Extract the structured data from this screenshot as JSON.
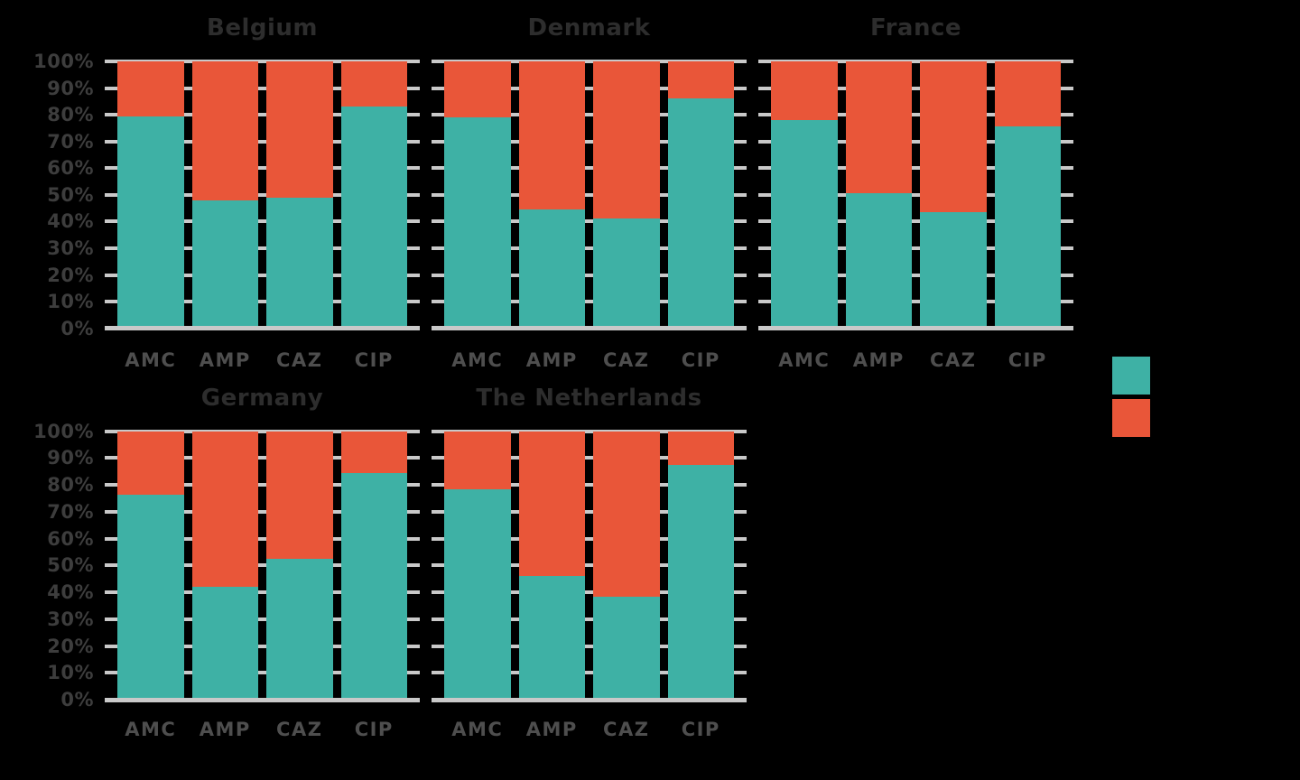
{
  "chart_data": {
    "type": "bar",
    "stacked": true,
    "percent_scale": true,
    "categories": [
      "AMC",
      "AMP",
      "CAZ",
      "CIP"
    ],
    "y_tick_labels": [
      "0%",
      "10%",
      "20%",
      "30%",
      "40%",
      "50%",
      "60%",
      "70%",
      "80%",
      "90%",
      "100%"
    ],
    "ylim": [
      0,
      100
    ],
    "grid": true,
    "subplots": [
      {
        "title": "Belgium",
        "series": [
          {
            "color": "teal",
            "values": [
              79.5,
              48,
              49,
              83
            ]
          },
          {
            "color": "orange",
            "values": [
              20.5,
              52,
              51,
              17
            ]
          }
        ]
      },
      {
        "title": "Denmark",
        "series": [
          {
            "color": "teal",
            "values": [
              79,
              44.5,
              41,
              86
            ]
          },
          {
            "color": "orange",
            "values": [
              21,
              55.5,
              59,
              14
            ]
          }
        ]
      },
      {
        "title": "France",
        "series": [
          {
            "color": "teal",
            "values": [
              78,
              50.5,
              43.5,
              75.5
            ]
          },
          {
            "color": "orange",
            "values": [
              22,
              49.5,
              56.5,
              24.5
            ]
          }
        ]
      },
      {
        "title": "Germany",
        "series": [
          {
            "color": "teal",
            "values": [
              76.5,
              42,
              52.5,
              84.5
            ]
          },
          {
            "color": "orange",
            "values": [
              23.5,
              58,
              47.5,
              15.5
            ]
          }
        ]
      },
      {
        "title": "The Netherlands",
        "series": [
          {
            "color": "teal",
            "values": [
              78.5,
              46,
              38.5,
              87.5
            ]
          },
          {
            "color": "orange",
            "values": [
              21.5,
              54,
              61.5,
              12.5
            ]
          }
        ]
      }
    ],
    "legend": {
      "position": "right",
      "labels_visible": false,
      "items": [
        {
          "color": "teal"
        },
        {
          "color": "orange"
        }
      ]
    },
    "colors": {
      "teal": "#3eb1a5",
      "orange": "#e95639",
      "grid": "#c9c9c9",
      "title_text": "#2d2d2d",
      "tick_text": "#3d3d3d",
      "category_text": "#4e4e4e",
      "background": "#000000"
    }
  }
}
